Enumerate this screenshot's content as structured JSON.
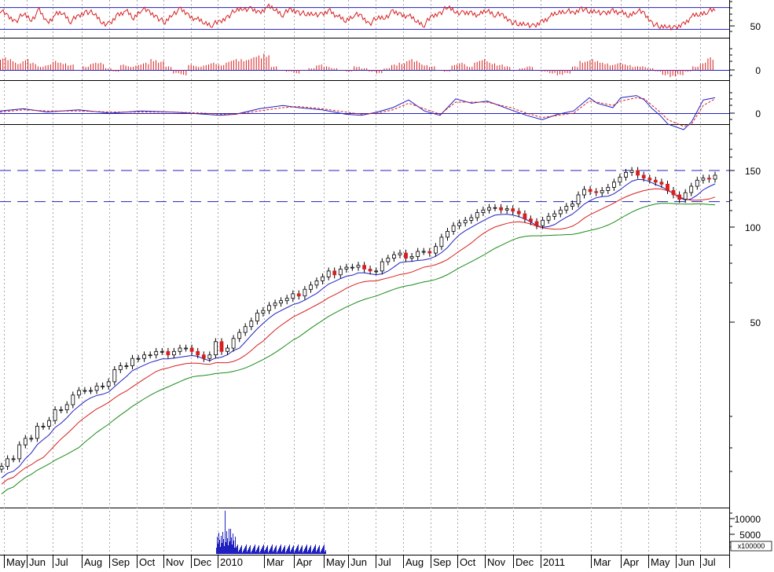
{
  "chart_data": {
    "type": "stock-multi-panel",
    "x_labels": [
      "May",
      "Jun",
      "Jul",
      "Aug",
      "Sep",
      "Oct",
      "Nov",
      "Dec",
      "2010",
      "Mar",
      "Apr",
      "May",
      "Jun",
      "Jul",
      "Aug",
      "Sep",
      "Oct",
      "Nov",
      "Dec",
      "2011",
      "Mar",
      "Apr",
      "May",
      "Jun",
      "Jul"
    ],
    "panels": {
      "rsi": {
        "type": "line",
        "y_tick_labels": [
          "50"
        ],
        "reference_lines": [
          66,
          40
        ],
        "color": "#d81e1e",
        "points": [
          [
            0,
            63
          ],
          [
            10,
            55
          ],
          [
            20,
            50
          ],
          [
            30,
            58
          ],
          [
            40,
            52
          ],
          [
            50,
            62
          ],
          [
            60,
            48
          ],
          [
            70,
            57
          ],
          [
            80,
            60
          ],
          [
            90,
            50
          ],
          [
            100,
            55
          ],
          [
            110,
            62
          ],
          [
            120,
            58
          ],
          [
            130,
            49
          ],
          [
            140,
            45
          ],
          [
            150,
            58
          ],
          [
            160,
            62
          ],
          [
            170,
            53
          ],
          [
            180,
            65
          ],
          [
            190,
            60
          ],
          [
            200,
            55
          ],
          [
            210,
            47
          ],
          [
            220,
            60
          ],
          [
            230,
            63
          ],
          [
            240,
            57
          ],
          [
            250,
            52
          ],
          [
            260,
            48
          ],
          [
            270,
            46
          ],
          [
            280,
            48
          ],
          [
            290,
            56
          ],
          [
            300,
            62
          ],
          [
            310,
            66
          ],
          [
            320,
            63
          ],
          [
            330,
            60
          ],
          [
            340,
            67
          ],
          [
            350,
            64
          ],
          [
            360,
            58
          ],
          [
            370,
            63
          ],
          [
            380,
            61
          ],
          [
            390,
            57
          ],
          [
            400,
            60
          ],
          [
            410,
            56
          ],
          [
            420,
            63
          ],
          [
            430,
            55
          ],
          [
            440,
            50
          ],
          [
            450,
            58
          ],
          [
            460,
            55
          ],
          [
            470,
            47
          ],
          [
            480,
            53
          ],
          [
            490,
            55
          ],
          [
            500,
            60
          ],
          [
            510,
            58
          ],
          [
            520,
            56
          ],
          [
            530,
            50
          ],
          [
            540,
            46
          ],
          [
            550,
            55
          ],
          [
            560,
            60
          ],
          [
            570,
            66
          ],
          [
            580,
            62
          ],
          [
            590,
            58
          ],
          [
            600,
            60
          ],
          [
            610,
            57
          ],
          [
            620,
            63
          ],
          [
            630,
            58
          ],
          [
            640,
            56
          ],
          [
            650,
            50
          ],
          [
            660,
            45
          ],
          [
            670,
            48
          ],
          [
            680,
            42
          ],
          [
            690,
            50
          ],
          [
            700,
            55
          ],
          [
            710,
            60
          ],
          [
            720,
            63
          ],
          [
            730,
            58
          ],
          [
            740,
            66
          ],
          [
            750,
            60
          ],
          [
            760,
            63
          ],
          [
            770,
            57
          ],
          [
            780,
            63
          ],
          [
            790,
            60
          ],
          [
            800,
            56
          ],
          [
            810,
            63
          ],
          [
            820,
            58
          ],
          [
            830,
            48
          ],
          [
            840,
            42
          ],
          [
            850,
            45
          ],
          [
            860,
            40
          ],
          [
            870,
            47
          ],
          [
            880,
            55
          ],
          [
            890,
            58
          ],
          [
            900,
            62
          ],
          [
            910,
            62
          ]
        ]
      },
      "macd_histogram": {
        "type": "bar",
        "y_tick_labels": [
          "0"
        ],
        "color": "#d81e1e",
        "values": [
          7,
          6,
          4,
          6,
          4,
          2,
          3,
          5,
          4,
          3,
          0,
          2,
          4,
          4,
          1,
          -1,
          3,
          2,
          3,
          4,
          6,
          5,
          2,
          -2,
          -3,
          3,
          2,
          3,
          4,
          3,
          5,
          6,
          6,
          7,
          8,
          9,
          2,
          0,
          -1,
          -2,
          0,
          1,
          3,
          2,
          1,
          0,
          -1,
          2,
          1,
          -1,
          -2,
          1,
          3,
          4,
          6,
          5,
          3,
          2,
          0,
          -1,
          3,
          4,
          2,
          5,
          6,
          4,
          3,
          2,
          0,
          1,
          2,
          0,
          -1,
          -2,
          -3,
          -2,
          2,
          5,
          6,
          5,
          4,
          3,
          4,
          3,
          2,
          2,
          1,
          -1,
          -3,
          -4,
          -3,
          -1,
          2,
          4,
          7
        ]
      },
      "macd": {
        "type": "line",
        "y_tick_labels": [
          "0"
        ],
        "series": [
          {
            "name": "",
            "color": "#2020c0",
            "dash": false,
            "points": [
              [
                0,
                2
              ],
              [
                30,
                4
              ],
              [
                60,
                1
              ],
              [
                100,
                3
              ],
              [
                140,
                0
              ],
              [
                180,
                2
              ],
              [
                220,
                1
              ],
              [
                260,
                -1
              ],
              [
                280,
                -2
              ],
              [
                300,
                -1
              ],
              [
                330,
                4
              ],
              [
                360,
                7
              ],
              [
                380,
                5
              ],
              [
                410,
                3
              ],
              [
                440,
                -1
              ],
              [
                460,
                -2
              ],
              [
                480,
                1
              ],
              [
                500,
                5
              ],
              [
                520,
                12
              ],
              [
                540,
                2
              ],
              [
                560,
                -2
              ],
              [
                580,
                13
              ],
              [
                600,
                9
              ],
              [
                620,
                11
              ],
              [
                650,
                3
              ],
              [
                670,
                -2
              ],
              [
                690,
                -6
              ],
              [
                710,
                -1
              ],
              [
                730,
                2
              ],
              [
                750,
                14
              ],
              [
                760,
                9
              ],
              [
                780,
                5
              ],
              [
                790,
                14
              ],
              [
                810,
                16
              ],
              [
                820,
                12
              ],
              [
                830,
                4
              ],
              [
                840,
                -2
              ],
              [
                850,
                -10
              ],
              [
                870,
                -15
              ],
              [
                880,
                -8
              ],
              [
                895,
                12
              ],
              [
                910,
                14
              ]
            ]
          },
          {
            "name": "",
            "color": "#d81e1e",
            "dash": true,
            "points": [
              [
                0,
                1
              ],
              [
                30,
                3
              ],
              [
                60,
                2
              ],
              [
                100,
                2
              ],
              [
                140,
                1
              ],
              [
                180,
                1
              ],
              [
                220,
                1
              ],
              [
                260,
                0
              ],
              [
                280,
                -1
              ],
              [
                300,
                -1
              ],
              [
                330,
                2
              ],
              [
                360,
                5
              ],
              [
                380,
                6
              ],
              [
                410,
                4
              ],
              [
                440,
                1
              ],
              [
                460,
                -1
              ],
              [
                480,
                0
              ],
              [
                500,
                3
              ],
              [
                520,
                9
              ],
              [
                540,
                4
              ],
              [
                560,
                -1
              ],
              [
                580,
                10
              ],
              [
                600,
                10
              ],
              [
                620,
                10
              ],
              [
                650,
                5
              ],
              [
                670,
                0
              ],
              [
                690,
                -4
              ],
              [
                710,
                -2
              ],
              [
                730,
                0
              ],
              [
                750,
                11
              ],
              [
                760,
                10
              ],
              [
                780,
                7
              ],
              [
                790,
                11
              ],
              [
                810,
                14
              ],
              [
                820,
                13
              ],
              [
                830,
                7
              ],
              [
                840,
                1
              ],
              [
                850,
                -6
              ],
              [
                870,
                -12
              ],
              [
                880,
                -10
              ],
              [
                895,
                7
              ],
              [
                910,
                13
              ]
            ]
          }
        ]
      },
      "price": {
        "type": "candlestick",
        "scale": "log",
        "y_tick_labels": [
          "150",
          "100",
          "50"
        ],
        "horizontal_reference_lines": [
          150,
          120
        ],
        "closes": [
          18,
          19,
          19,
          21,
          22,
          22,
          24,
          24,
          25,
          27,
          27,
          28,
          30,
          31,
          31,
          31,
          32,
          32,
          33,
          36,
          37,
          37,
          39,
          39,
          40,
          40,
          41,
          41,
          40,
          41,
          42,
          42,
          41,
          40,
          39,
          40,
          44,
          41,
          42,
          45,
          47,
          49,
          51,
          54,
          55,
          57,
          58,
          59,
          60,
          62,
          61,
          64,
          66,
          68,
          70,
          73,
          71,
          74,
          75,
          75,
          76,
          74,
          73,
          73,
          78,
          80,
          82,
          83,
          80,
          81,
          84,
          84,
          83,
          87,
          93,
          97,
          101,
          103,
          105,
          107,
          111,
          113,
          115,
          115,
          113,
          114,
          112,
          110,
          106,
          104,
          101,
          105,
          108,
          110,
          113,
          116,
          118,
          126,
          131,
          129,
          128,
          130,
          133,
          138,
          143,
          148,
          150,
          145,
          142,
          140,
          138,
          136,
          130,
          126,
          122,
          128,
          134,
          140,
          142,
          141,
          145
        ]
      },
      "volume": {
        "type": "bar",
        "y_tick_labels": [
          "10000",
          "5000"
        ],
        "unit_label": "x100000",
        "color": "#2020c0"
      }
    }
  }
}
